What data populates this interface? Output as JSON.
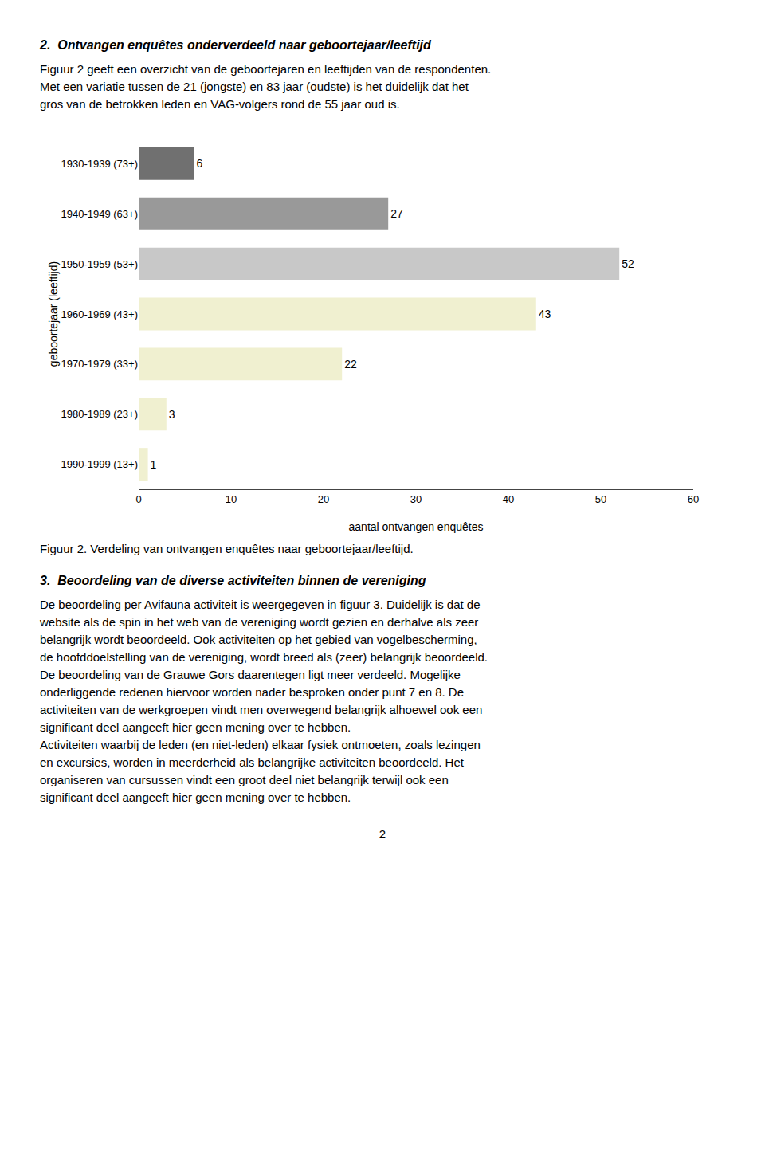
{
  "chart_data": {
    "type": "bar",
    "orientation": "horizontal",
    "title": "Figuur 2. Verdeling van ontvangen enquêtes naar geboortejaar/leeftijd.",
    "x_label": "aantal ontvangen enquêtes",
    "y_label": "geboortejaar (leeftijd)",
    "categories": [
      "1930-1939 (73+)",
      "1940-1949 (63+)",
      "1950-1959 (53+)",
      "1960-1969 (43+)",
      "1970-1979 (33+)",
      "1980-1989 (23+)",
      "1990-1999 (13+)"
    ],
    "values": [
      6,
      27,
      52,
      43,
      22,
      3,
      1
    ],
    "colors": [
      "#707070",
      "#999999",
      "#c8c8c8",
      "#f0f0d0",
      "#f0f0d0",
      "#f0f0d0",
      "#f0f0d0"
    ],
    "xlim": [
      0,
      60
    ],
    "xticks": [
      0,
      10,
      20,
      30,
      40,
      50,
      60
    ],
    "data_labels": true,
    "grid": false,
    "annotations": [
      "2.  Ontvangen enquêtes onderverdeeld naar geboortejaar/leeftijd",
      "Figuur 2 geeft een overzicht van de geboortejaren en leeftijden van de respondenten.",
      "Met een variatie tussen de 21 (jongste) en 83 jaar (oudste) is het duidelijk dat het",
      "gros van de betrokken leden en VAG-volgers rond de 55 jaar oud is.",
      "3.  Beoordeling van de diverse activiteiten binnen de vereniging",
      "De beoordeling per Avifauna activiteit is weergegeven in figuur 3. Duidelijk is dat de",
      "website als de spin in het web van de vereniging wordt gezien en derhalve als zeer",
      "belangrijk wordt beoordeeld. Ook activiteiten op het gebied van vogelbescherming,",
      "de hoofddoelstelling van de vereniging, wordt breed als (zeer) belangrijk beoordeeld.",
      "De beoordeling van de Grauwe Gors daarentegen ligt meer verdeeld. Mogelijke",
      "onderliggende redenen hiervoor worden nader besproken onder punt 7 en 8. De",
      "activiteiten van de werkgroepen vindt men overwegend belangrijk alhoewel ook een",
      "significant deel aangeeft hier geen mening over te hebben.",
      "Activiteiten waarbij de leden (en niet-leden) elkaar fysiek ontmoeten, zoals lezingen",
      "en excursies, worden in meerderheid als belangrijke activiteiten beoordeeld. Het",
      "organiseren van cursussen vindt een groot deel niet belangrijk terwijl ook een",
      "significant deel aangeeft hier geen mening over te hebben.",
      "2"
    ]
  }
}
